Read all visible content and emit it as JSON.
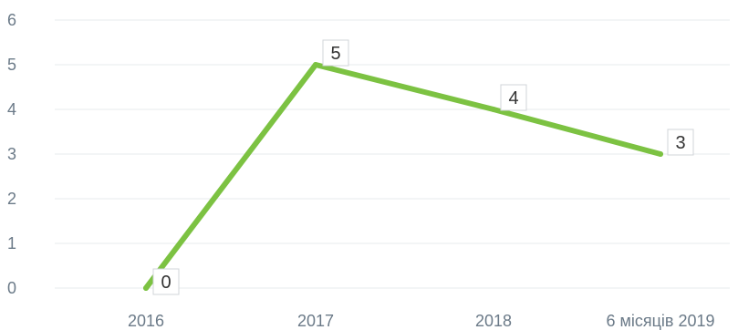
{
  "chart_data": {
    "type": "line",
    "categories": [
      "2016",
      "2017",
      "2018",
      "6 місяців 2019"
    ],
    "series": [
      {
        "values": [
          0,
          5,
          4,
          3
        ],
        "color": "#7cc242"
      }
    ],
    "title": "",
    "xlabel": "",
    "ylabel": "",
    "ylim": [
      0,
      6
    ],
    "yticks": [
      "0",
      "1",
      "2",
      "3",
      "4",
      "5",
      "6"
    ],
    "data_labels": [
      "0",
      "5",
      "4",
      "3"
    ],
    "grid": true,
    "legend": "none"
  }
}
